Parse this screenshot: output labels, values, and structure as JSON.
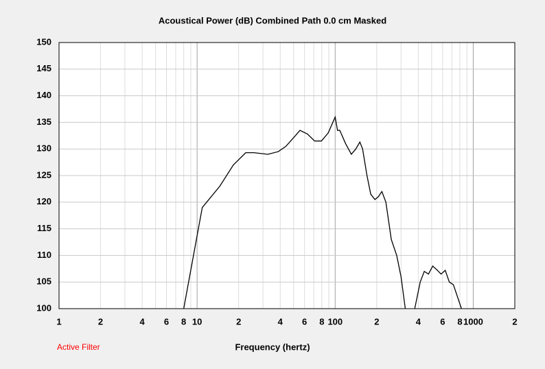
{
  "chart_data": {
    "type": "line",
    "title": "Acoustical Power (dB)   Combined   Path 0.0 cm   Masked",
    "xlabel": "Frequency (hertz)",
    "annotation": "Active Filter",
    "xscale": "log",
    "xlim": [
      1,
      2000
    ],
    "ylim": [
      100,
      150
    ],
    "xticks": [
      1,
      2,
      4,
      6,
      8,
      10,
      {
        "value": 20,
        "label": "2"
      },
      {
        "value": 40,
        "label": "4"
      },
      {
        "value": 60,
        "label": "6"
      },
      {
        "value": 80,
        "label": "8"
      },
      100,
      {
        "value": 200,
        "label": "2"
      },
      {
        "value": 400,
        "label": "4"
      },
      {
        "value": 600,
        "label": "6"
      },
      {
        "value": 800,
        "label": "8"
      },
      1000,
      {
        "value": 2000,
        "label": "2"
      }
    ],
    "xminorticks": [
      3,
      5,
      7,
      9,
      30,
      50,
      70,
      90,
      300,
      500,
      700,
      900
    ],
    "yticks": [
      100,
      105,
      110,
      115,
      120,
      125,
      130,
      135,
      140,
      145,
      150
    ],
    "grid": true,
    "color": "#000000",
    "x": [
      8,
      10.9,
      14.6,
      18.3,
      22.5,
      25.8,
      32.5,
      38.7,
      44,
      51.5,
      55.6,
      63,
      71,
      79.5,
      89,
      100,
      104,
      108,
      119,
      131,
      141,
      151,
      158,
      170,
      181,
      194,
      205,
      218,
      233,
      255,
      279,
      300,
      322,
      350,
      377,
      413,
      442,
      474,
      509,
      545,
      585,
      627,
      671,
      718,
      822
    ],
    "values": [
      100,
      119,
      123,
      127,
      129.3,
      129.3,
      129,
      129.5,
      130.5,
      132.5,
      133.5,
      132.8,
      131.5,
      131.5,
      133,
      136,
      133.5,
      133.5,
      131,
      129,
      130,
      131.3,
      130,
      125,
      121.5,
      120.5,
      121,
      122,
      120,
      113,
      110,
      106,
      100,
      null,
      100,
      105,
      107,
      106.5,
      108,
      107.3,
      106.5,
      107.2,
      105,
      104.5,
      100
    ]
  }
}
